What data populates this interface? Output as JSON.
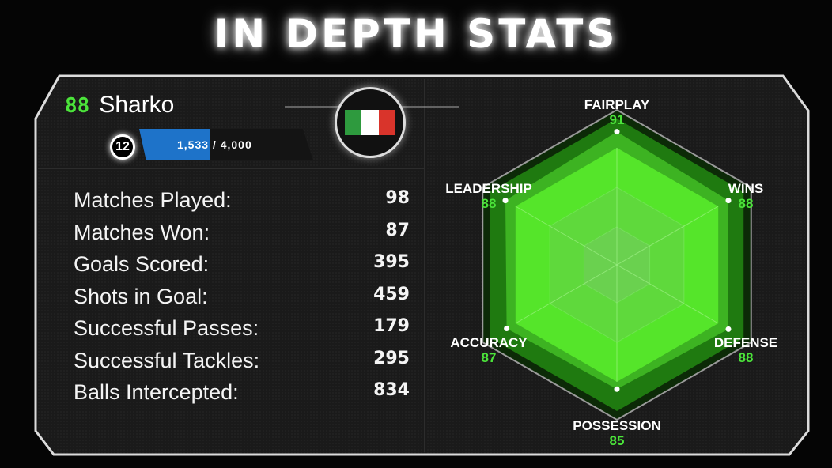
{
  "title": "IN DEPTH STATS",
  "player": {
    "rating": "88",
    "name": "Sharko",
    "level": "12",
    "xp_text": "1,533 / 4,000",
    "xp_progress": 0.383,
    "flag": "italy-flag",
    "flag_colors": [
      "#2e9a3e",
      "#ffffff",
      "#d9342b"
    ]
  },
  "stats": [
    {
      "label": "Matches Played:",
      "value": "98"
    },
    {
      "label": "Matches Won:",
      "value": "87"
    },
    {
      "label": "Goals Scored:",
      "value": "395"
    },
    {
      "label": "Shots in Goal:",
      "value": "459"
    },
    {
      "label": "Successful Passes:",
      "value": "179"
    },
    {
      "label": "Successful Tackles:",
      "value": "295"
    },
    {
      "label": "Balls Intercepted:",
      "value": "834"
    }
  ],
  "chart_data": {
    "type": "radar",
    "axes": [
      "FAIRPLAY",
      "WINS",
      "DEFENSE",
      "POSSESSION",
      "ACCURACY",
      "LEADERSHIP"
    ],
    "values": [
      91,
      88,
      88,
      85,
      87,
      88
    ],
    "max": 100,
    "color": "#4be43a"
  }
}
